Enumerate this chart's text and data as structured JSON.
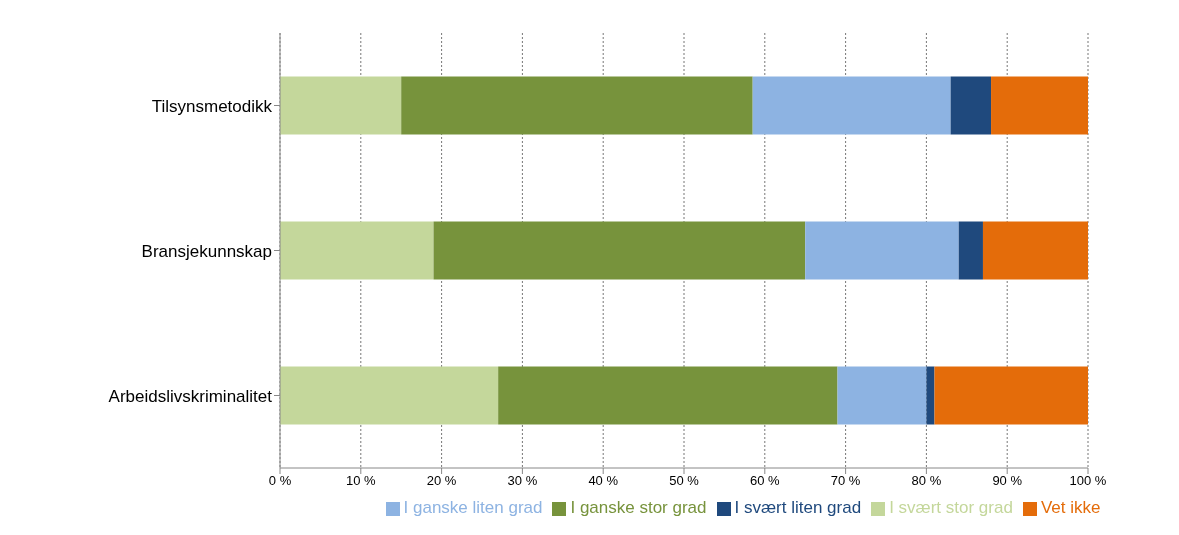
{
  "chart_data": {
    "type": "bar",
    "orientation": "horizontal",
    "stacked": true,
    "categories": [
      "Tilsynsmetodikk",
      "Bransjekunnskap",
      "Arbeidslivskriminalitet"
    ],
    "series": [
      {
        "name": "I svært stor grad",
        "color": "#c4d79b",
        "values": [
          15,
          19,
          27
        ]
      },
      {
        "name": "I ganske stor grad",
        "color": "#77933c",
        "values": [
          43.5,
          46,
          42
        ]
      },
      {
        "name": "I ganske liten grad",
        "color": "#8db3e2",
        "values": [
          24.5,
          19,
          11
        ]
      },
      {
        "name": "I svært liten grad",
        "color": "#1f497d",
        "values": [
          5,
          3,
          1
        ]
      },
      {
        "name": "Vet ikke",
        "color": "#e46c0a",
        "values": [
          12,
          13,
          19
        ]
      }
    ],
    "xlim": [
      0,
      100
    ],
    "xticks": [
      {
        "value": 0,
        "label": "0 %"
      },
      {
        "value": 10,
        "label": "10 %"
      },
      {
        "value": 20,
        "label": "20 %"
      },
      {
        "value": 30,
        "label": "30 %"
      },
      {
        "value": 40,
        "label": "40 %"
      },
      {
        "value": 50,
        "label": "50 %"
      },
      {
        "value": 60,
        "label": "60 %"
      },
      {
        "value": 70,
        "label": "70 %"
      },
      {
        "value": 80,
        "label": "80 %"
      },
      {
        "value": 90,
        "label": "90 %"
      },
      {
        "value": 100,
        "label": "100 %"
      }
    ],
    "grid": "x",
    "legend": "bottom"
  }
}
